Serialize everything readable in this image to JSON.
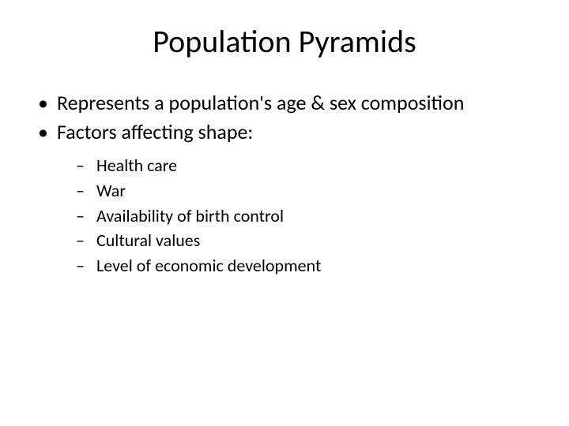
{
  "slide": {
    "title": "Population Pyramids",
    "background_color": "#ffffff",
    "text_color": "#000000",
    "font_family": "Calibri",
    "title_fontsize": 40,
    "level1_fontsize": 26,
    "level2_fontsize": 22,
    "bullets": {
      "level1_symbol": "•",
      "level2_symbol": "–",
      "items": [
        {
          "text": "Represents a population's age & sex composition"
        },
        {
          "text": "Factors affecting shape:"
        }
      ],
      "subitems": [
        {
          "text": "Health care"
        },
        {
          "text": "War"
        },
        {
          "text": "Availability of birth control"
        },
        {
          "text": "Cultural values"
        },
        {
          "text": "Level of economic development"
        }
      ]
    }
  }
}
